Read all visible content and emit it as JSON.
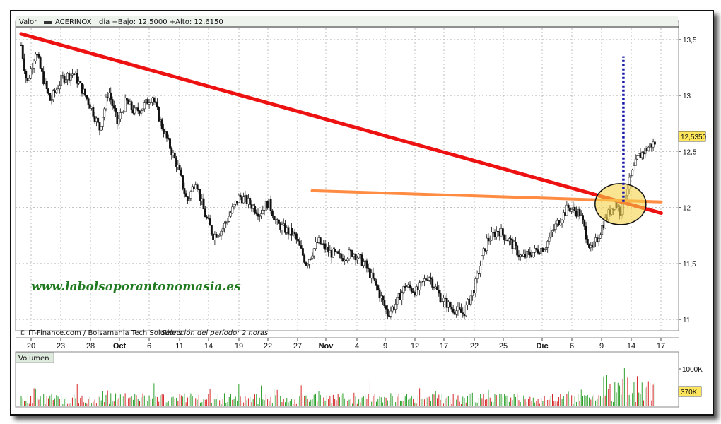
{
  "header": {
    "series_label": "Valor",
    "ticker": "ACERINOX",
    "info": "dia +Bajo: 12,5000 +Alto: 12,6150"
  },
  "footer_credit": "© IT-Finance.com / Bolsamania Tech Solutions",
  "footer_period": "Selección del período: 2 horas",
  "watermark": "www.labolsaporantonomasia.es",
  "volume_panel": {
    "title": "Volumen",
    "ticks": [
      "1000K"
    ],
    "last_value": "370K"
  },
  "last_price_label": "12,5350",
  "colors": {
    "up_volume": "#2ca02c",
    "down_volume": "#d62728",
    "trend_red": "#ee1111",
    "trend_orange": "#ff8c42",
    "highlight_circle": "#f5d24a",
    "projection_dotted": "#1a1aa8",
    "last_label_bg": "#ffe65c"
  },
  "chart_data": {
    "type": "line",
    "title": "",
    "xlabel": "",
    "ylabel": "",
    "ylim": [
      10.9,
      13.6
    ],
    "y_ticks": [
      "13,5",
      "13",
      "12,5",
      "12",
      "11,5",
      "11"
    ],
    "y_tick_values": [
      13.5,
      13.0,
      12.5,
      12.0,
      11.5,
      11.0
    ],
    "x_ticks": [
      "20",
      "23",
      "28",
      "Oct",
      "6",
      "11",
      "14",
      "19",
      "22",
      "27",
      "Nov",
      "4",
      "9",
      "12",
      "17",
      "22",
      "25",
      "Dic",
      "6",
      "9",
      "14",
      "17"
    ],
    "x_tick_bold": [
      "Oct",
      "Nov",
      "Dic"
    ],
    "price_path": {
      "x": [
        0,
        2,
        5,
        7,
        10,
        14,
        18,
        21,
        24,
        27,
        30,
        33,
        36,
        39,
        42,
        45,
        48,
        51,
        54,
        57,
        60,
        63,
        66,
        69,
        72,
        75,
        78,
        82,
        85,
        88,
        91,
        94,
        98,
        102,
        106,
        110,
        114,
        118,
        122,
        126,
        129,
        132,
        136,
        140,
        144,
        148,
        152,
        156,
        160,
        164,
        168,
        172,
        176,
        180,
        184,
        188,
        192,
        196,
        200,
        204,
        206,
        208,
        210,
        212,
        214,
        216,
        218
      ],
      "y": [
        13.45,
        13.1,
        13.4,
        13.2,
        12.95,
        13.15,
        13.2,
        13.05,
        12.9,
        12.7,
        13.05,
        12.75,
        12.95,
        12.85,
        12.9,
        13.0,
        12.75,
        12.55,
        12.35,
        12.05,
        12.25,
        11.95,
        11.75,
        11.8,
        11.95,
        12.1,
        12.05,
        11.95,
        12.05,
        11.85,
        11.8,
        11.75,
        11.5,
        11.7,
        11.6,
        11.55,
        11.6,
        11.5,
        11.3,
        11.05,
        11.15,
        11.3,
        11.25,
        11.4,
        11.2,
        11.1,
        11.05,
        11.3,
        11.7,
        11.8,
        11.7,
        11.55,
        11.6,
        11.65,
        11.85,
        12.0,
        11.95,
        11.6,
        11.85,
        12.05,
        11.95,
        12.15,
        12.3,
        12.45,
        12.5,
        12.55,
        12.58
      ]
    },
    "annotations": [
      {
        "kind": "trendline",
        "color": "red",
        "from": [
          0,
          13.55
        ],
        "to": [
          220,
          11.95
        ]
      },
      {
        "kind": "trendline",
        "color": "orange",
        "from": [
          100,
          12.15
        ],
        "to": [
          220,
          12.05
        ]
      },
      {
        "kind": "circle",
        "color": "yellow",
        "center": [
          206,
          12.03
        ]
      },
      {
        "kind": "dotted-projection",
        "color": "blue",
        "x": 207,
        "from": 12.05,
        "to": 13.35
      }
    ],
    "volume": {
      "ylim": [
        0,
        1200
      ],
      "unit": "K"
    }
  }
}
